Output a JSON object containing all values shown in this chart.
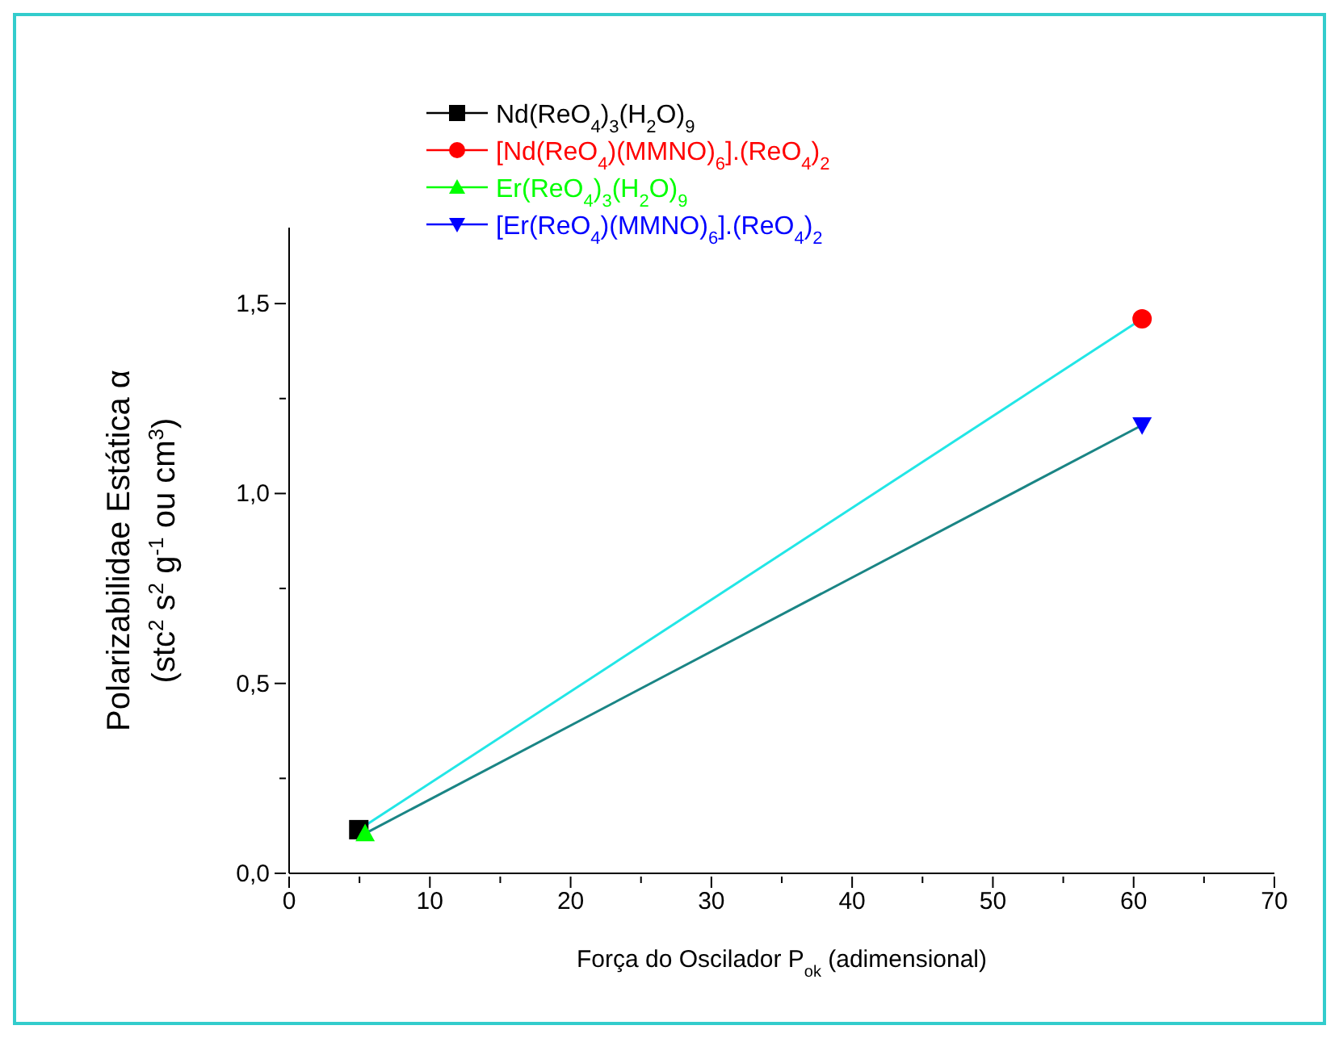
{
  "chart_data": {
    "type": "scatter",
    "xlabel": "Força do Oscilador P$_{ok}$ (adimensional)",
    "ylabel": "Polarizabilidae Estática α\n(stc$^{2}$ s$^{2}$ g$^{-1}$ ou cm$^{3}$)",
    "xlim": [
      0,
      70
    ],
    "ylim": [
      0,
      1.7
    ],
    "xticks": [
      0,
      {
        "value": 5,
        "label": null
      },
      10,
      {
        "value": 15,
        "label": null
      },
      20,
      {
        "value": 25,
        "label": null
      },
      30,
      {
        "value": 35,
        "label": null
      },
      40,
      {
        "value": 45,
        "label": null
      },
      50,
      {
        "value": 55,
        "label": null
      },
      60,
      {
        "value": 65,
        "label": null
      },
      70
    ],
    "yticks": [
      {
        "value": 0,
        "label": "0,0"
      },
      {
        "value": 0.25,
        "label": null
      },
      {
        "value": 0.5,
        "label": "0,5"
      },
      {
        "value": 0.75,
        "label": null
      },
      {
        "value": 1,
        "label": "1,0"
      },
      {
        "value": 1.25,
        "label": null
      },
      {
        "value": 1.5,
        "label": "1,5"
      }
    ],
    "grid": false,
    "legend": "top",
    "series": [
      {
        "name": "Nd(ReO$_{4}$)$_{3}$(H$_{2}$O)$_{9}$",
        "color": "#000000",
        "marker": "square",
        "x": [
          4.95
        ],
        "values": [
          0.115
        ]
      },
      {
        "name": "[Nd(ReO$_{4}$)(MMNO)$_{6}$].(ReO$_{4}$)$_{2}$",
        "color": "#ff0000",
        "marker": "circle",
        "x": [
          60.6
        ],
        "values": [
          1.46
        ]
      },
      {
        "name": "Er(ReO$_{4}$)$_{3}$(H$_{2}$O)$_{9}$",
        "color": "#00ff00",
        "marker": "triangle",
        "x": [
          5.4
        ],
        "values": [
          0.105
        ]
      },
      {
        "name": "[Er(ReO$_{4}$)(MMNO)$_{6}$].(ReO$_{4}$)$_{2}$",
        "color": "#0000ff",
        "marker": "triangle-down",
        "x": [
          60.6
        ],
        "values": [
          1.18
        ]
      },
      {
        "type": "line",
        "color": "#22e6e6",
        "marker": "none",
        "x": [
          4.95,
          60.6
        ],
        "values": [
          0.115,
          1.46
        ]
      },
      {
        "type": "line",
        "color": "#1a8585",
        "marker": "none",
        "x": [
          5.4,
          60.6
        ],
        "values": [
          0.105,
          1.18
        ]
      }
    ]
  }
}
